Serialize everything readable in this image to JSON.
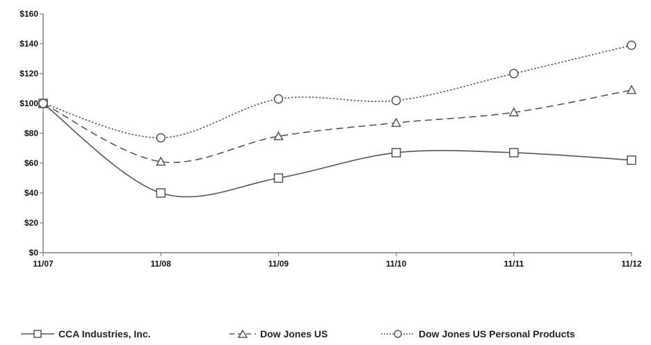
{
  "chart_data": {
    "type": "line",
    "x": [
      "11/07",
      "11/08",
      "11/09",
      "11/10",
      "11/11",
      "11/12"
    ],
    "ylim": [
      0,
      160
    ],
    "yticks": [
      0,
      20,
      40,
      60,
      80,
      100,
      120,
      140,
      160
    ],
    "ytick_labels": [
      "$0",
      "$20",
      "$40",
      "$60",
      "$80",
      "$100",
      "$120",
      "$140",
      "$160"
    ],
    "grid": false,
    "legend_position": "bottom",
    "series": [
      {
        "name": "CCA Industries, Inc.",
        "values": [
          100,
          40,
          50,
          67,
          67,
          62
        ],
        "marker": "square",
        "line_style": "solid",
        "color": "#555555"
      },
      {
        "name": "Dow Jones US",
        "values": [
          100,
          61,
          78,
          87,
          94,
          109
        ],
        "marker": "triangle",
        "line_style": "dashed",
        "color": "#555555"
      },
      {
        "name": "Dow Jones US Personal Products",
        "values": [
          100,
          77,
          103,
          102,
          120,
          139
        ],
        "marker": "circle",
        "line_style": "dotted",
        "color": "#555555"
      }
    ]
  }
}
